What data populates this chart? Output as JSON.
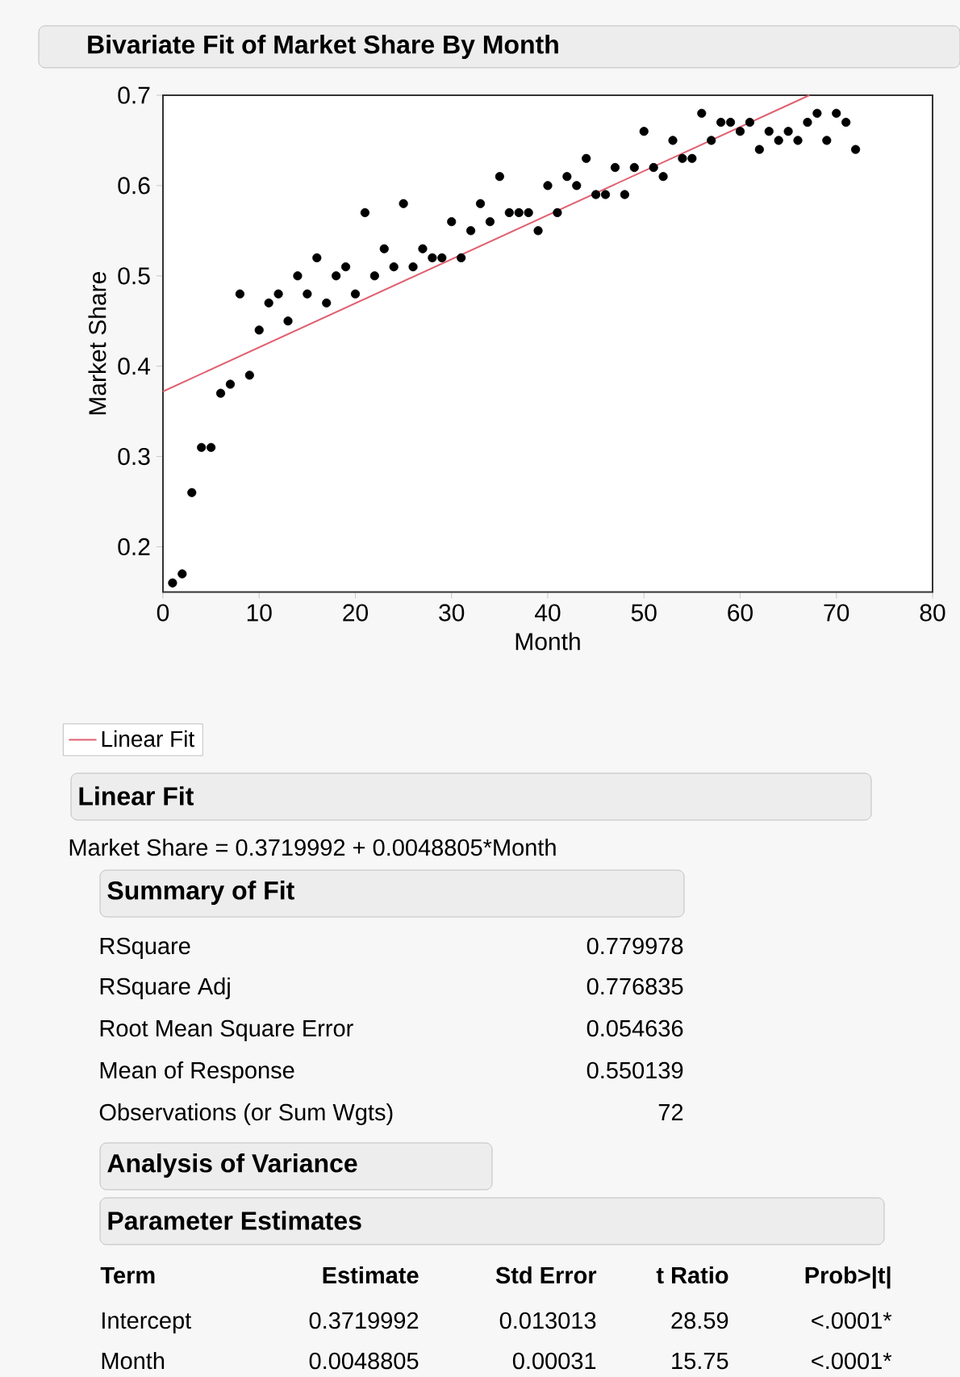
{
  "chart_data": {
    "type": "scatter",
    "title": "Bivariate Fit of Market Share By Month",
    "xlabel": "Month",
    "ylabel": "Market Share",
    "x": [
      1,
      2,
      3,
      4,
      5,
      6,
      7,
      8,
      9,
      10,
      11,
      12,
      13,
      14,
      15,
      16,
      17,
      18,
      19,
      20,
      21,
      22,
      23,
      24,
      25,
      26,
      27,
      28,
      29,
      30,
      31,
      32,
      33,
      34,
      35,
      36,
      37,
      38,
      39,
      40,
      41,
      42,
      43,
      44,
      45,
      46,
      47,
      48,
      49,
      50,
      51,
      52,
      53,
      54,
      55,
      56,
      57,
      58,
      59,
      60,
      61,
      62,
      63,
      64,
      65,
      66,
      67,
      68,
      69,
      70,
      71,
      72
    ],
    "series": [
      {
        "color": "#000000",
        "values": [
          0.16,
          0.17,
          0.26,
          0.31,
          0.31,
          0.37,
          0.38,
          0.48,
          0.39,
          0.44,
          0.47,
          0.48,
          0.45,
          0.5,
          0.48,
          0.52,
          0.47,
          0.5,
          0.51,
          0.48,
          0.57,
          0.5,
          0.53,
          0.51,
          0.58,
          0.51,
          0.53,
          0.52,
          0.52,
          0.56,
          0.52,
          0.55,
          0.58,
          0.56,
          0.61,
          0.57,
          0.57,
          0.57,
          0.55,
          0.6,
          0.57,
          0.61,
          0.6,
          0.63,
          0.59,
          0.59,
          0.62,
          0.59,
          0.62,
          0.66,
          0.62,
          0.61,
          0.65,
          0.63,
          0.63,
          0.68,
          0.65,
          0.67,
          0.67,
          0.66,
          0.67,
          0.64,
          0.66,
          0.65,
          0.66,
          0.65,
          0.67,
          0.68,
          0.65,
          0.68,
          0.67,
          0.64
        ]
      },
      {
        "type": "line",
        "name": "Linear Fit",
        "color": "#e06070",
        "marker": "none",
        "x": [
          0,
          67.2
        ],
        "values": [
          0.372,
          0.7
        ]
      }
    ],
    "xlim": [
      0,
      80
    ],
    "ylim": [
      0.15,
      0.7
    ],
    "xticks": [
      0,
      10,
      20,
      30,
      40,
      50,
      60,
      70,
      80
    ],
    "yticks": [
      0.2,
      0.3,
      0.4,
      0.5,
      0.6,
      0.7
    ],
    "legend": "bottom",
    "marker": "circle",
    "annotations": [
      "Linear Fit",
      "Market Share = 0.3719992 + 0.0048805*Month",
      "Summary of Fit",
      "RSquare",
      "0.779978",
      "RSquare Adj",
      "0.776835",
      "Root Mean Square Error",
      "0.054636",
      "Mean of Response",
      "0.550139",
      "Observations (or Sum Wgts)",
      "72",
      "Analysis of Variance",
      "Parameter Estimates",
      "Term",
      "Estimate",
      "Std Error",
      "t Ratio",
      "Prob>|t|",
      "Intercept",
      "0.3719992",
      "0.013013",
      "28.59",
      "<.0001*",
      "Month",
      "0.0048805",
      "0.00031",
      "15.75",
      "<.0001*"
    ]
  }
}
